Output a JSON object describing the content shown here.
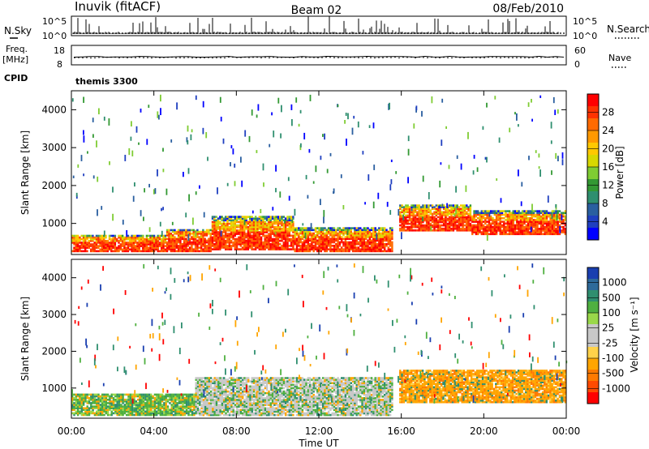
{
  "header": {
    "station": "Inuvik (fitACF)",
    "beam": "Beam 02",
    "date": "08/Feb/2010"
  },
  "nsky_panel": {
    "left_label": "N.Sky",
    "right_label": "N.Search",
    "ticks": [
      "10^5",
      "10^0"
    ]
  },
  "freq_panel": {
    "left_label": "Freq.",
    "left_unit": "[MHz]",
    "left_ticks": [
      "18",
      "8"
    ],
    "right_label": "Nave",
    "right_ticks": [
      "60",
      "0"
    ]
  },
  "cpid": {
    "label": "CPID",
    "value": "themis 3300"
  },
  "colorbar_power": {
    "label": "Power [dB]",
    "ticks": [
      "28",
      "24",
      "20",
      "16",
      "12",
      "8",
      "4"
    ],
    "colors": [
      "#ff0000",
      "#ff3300",
      "#ff6a00",
      "#ff9900",
      "#ffc800",
      "#d8d800",
      "#7fcc33",
      "#339933",
      "#2f8f6f",
      "#2a5fa0",
      "#1f3fc0",
      "#0000ff"
    ]
  },
  "colorbar_velocity": {
    "label": "Velocity [m s⁻¹]",
    "ticks": [
      "1000",
      "500",
      "100",
      "25",
      "-25",
      "-100",
      "-500",
      "-1000"
    ],
    "colors": [
      "#1a3fb0",
      "#2e6a9a",
      "#2f8f6f",
      "#4fb040",
      "#9ad84a",
      "#c8c8c8",
      "#c8c8c8",
      "#ffd24a",
      "#ffa500",
      "#ff7a00",
      "#ff4a00",
      "#ff0000"
    ]
  },
  "chart_data": [
    {
      "type": "heatmap",
      "name": "power",
      "ylabel": "Slant Range [km]",
      "xlabel": "Time UT",
      "x_ticks": [
        "00:00",
        "04:00",
        "08:00",
        "12:00",
        "16:00",
        "20:00",
        "00:00"
      ],
      "y_ticks": [
        "4000",
        "3000",
        "2000",
        "1000"
      ],
      "xlim": [
        0,
        24
      ],
      "ylim": [
        180,
        4500
      ],
      "blocks": [
        {
          "t0": 0.0,
          "t1": 4.6,
          "r0": 250,
          "r1": 700,
          "level": "high"
        },
        {
          "t0": 4.6,
          "t1": 6.8,
          "r0": 250,
          "r1": 850,
          "level": "high"
        },
        {
          "t0": 6.8,
          "t1": 10.8,
          "r0": 300,
          "r1": 1200,
          "level": "high"
        },
        {
          "t0": 10.8,
          "t1": 15.6,
          "r0": 250,
          "r1": 900,
          "level": "high"
        },
        {
          "t0": 15.9,
          "t1": 19.4,
          "r0": 800,
          "r1": 1500,
          "level": "high"
        },
        {
          "t0": 19.4,
          "t1": 24.0,
          "r0": 700,
          "r1": 1350,
          "level": "high"
        }
      ]
    },
    {
      "type": "heatmap",
      "name": "velocity",
      "ylabel": "Slant Range [km]",
      "xlabel": "Time UT",
      "x_ticks": [
        "00:00",
        "04:00",
        "08:00",
        "12:00",
        "16:00",
        "20:00",
        "00:00"
      ],
      "y_ticks": [
        "4000",
        "3000",
        "2000",
        "1000"
      ],
      "xlim": [
        0,
        24
      ],
      "ylim": [
        180,
        4500
      ],
      "blocks": [
        {
          "t0": 0.0,
          "t1": 6.0,
          "r0": 250,
          "r1": 850,
          "level": "mixed-green-orange"
        },
        {
          "t0": 6.0,
          "t1": 15.6,
          "r0": 250,
          "r1": 1300,
          "level": "near-zero-gray"
        },
        {
          "t0": 15.9,
          "t1": 24.0,
          "r0": 600,
          "r1": 1500,
          "level": "negative-orange"
        }
      ]
    }
  ]
}
